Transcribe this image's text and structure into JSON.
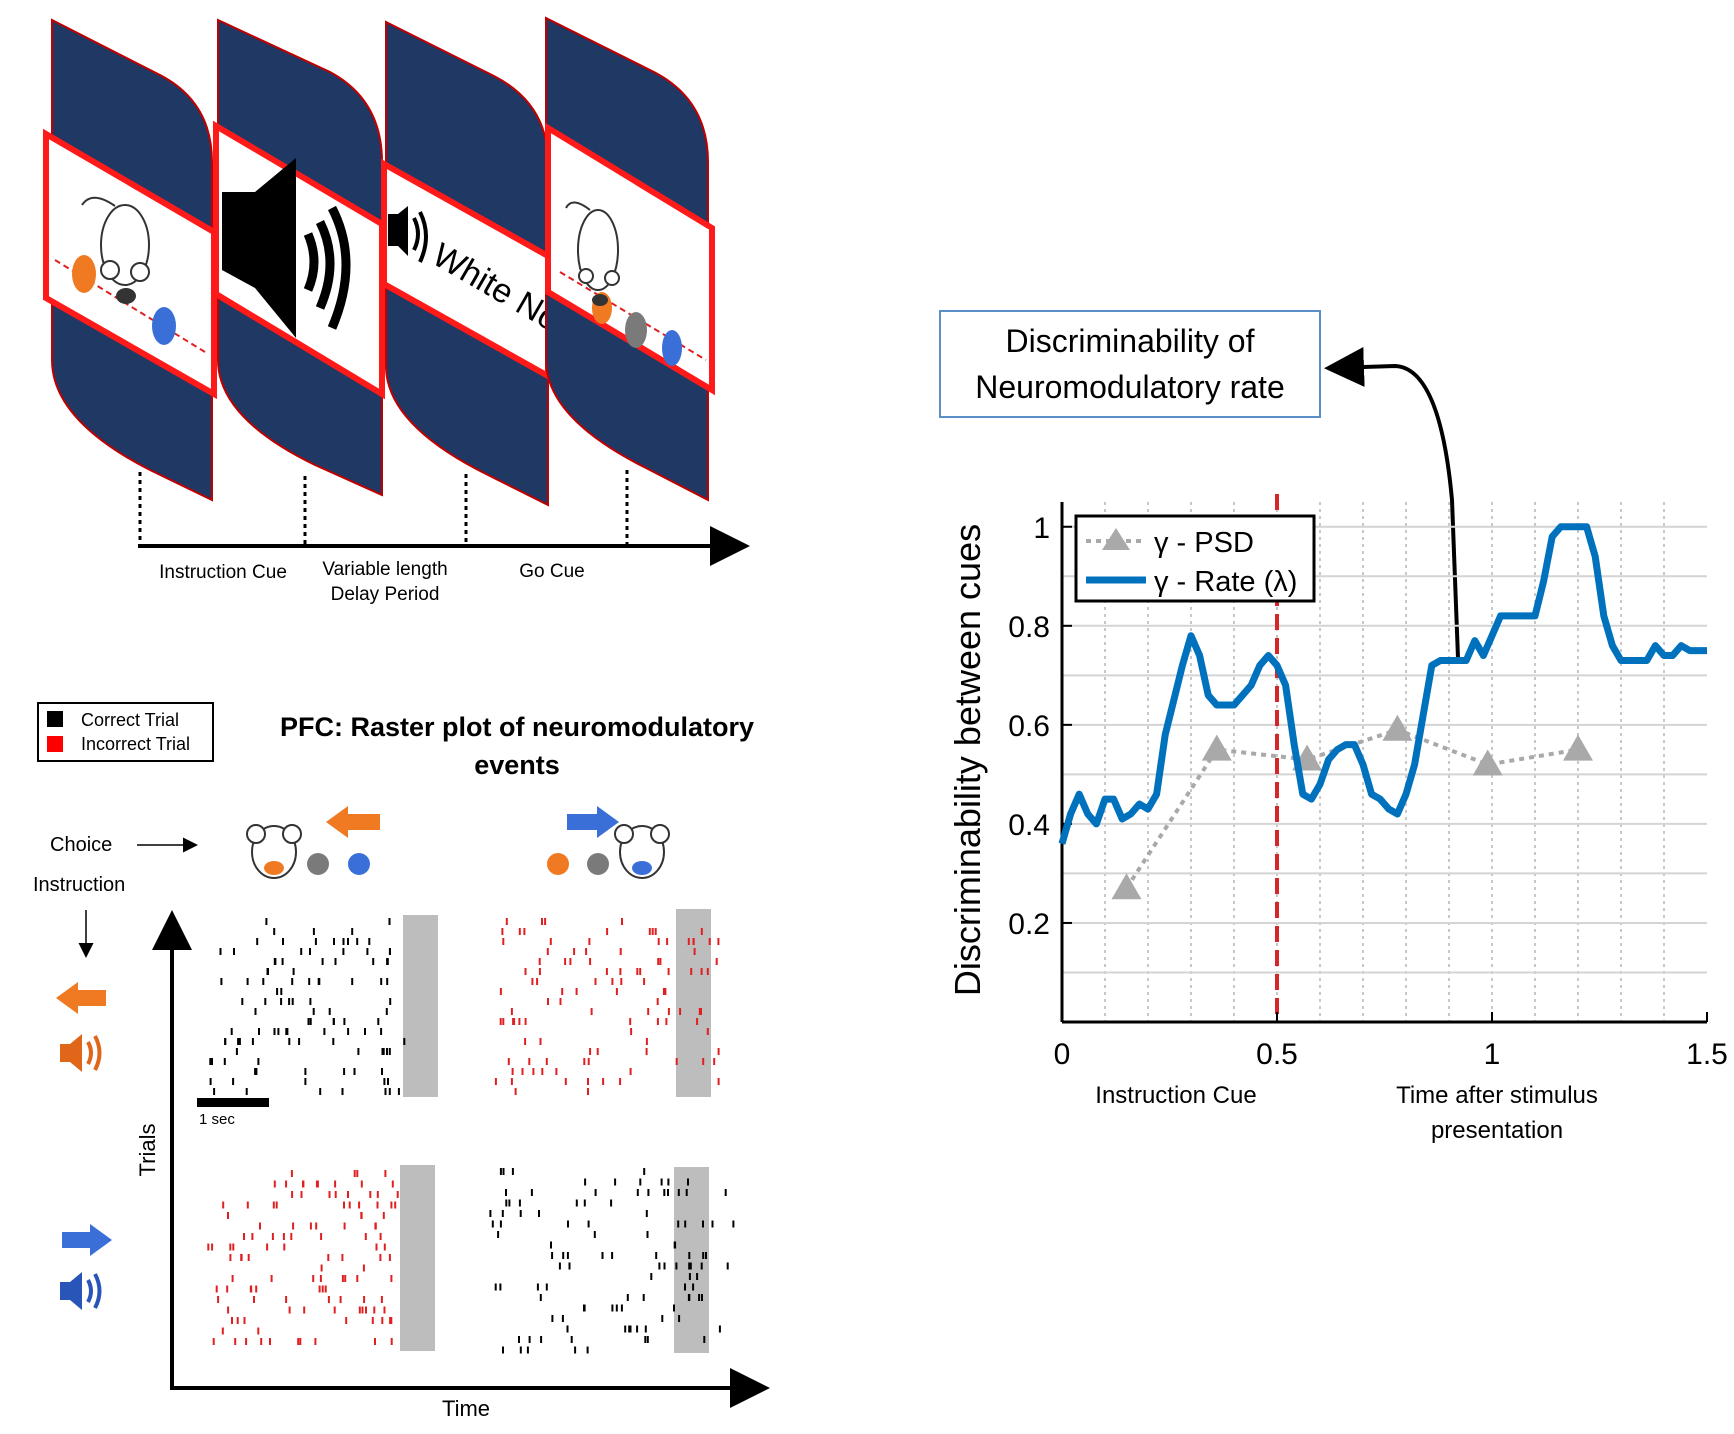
{
  "task_diagram": {
    "screen_texts": {
      "white_noise": "White Noise"
    },
    "phase_labels": [
      {
        "text": "Instruction Cue"
      },
      {
        "text": "Variable length"
      },
      {
        "text": "Delay Period"
      },
      {
        "text": "Go Cue"
      }
    ]
  },
  "raster": {
    "title_line1": "PFC: Raster plot of neuromodulatory",
    "title_line2": "events",
    "legend": [
      {
        "label": "Correct Trial",
        "color": "#000000"
      },
      {
        "label": "Incorrect Trial",
        "color": "#ff0000"
      }
    ],
    "choice_label": "Choice",
    "instruction_label": "Instruction",
    "y_axis_label": "Trials",
    "x_axis_label": "Time",
    "scale_bar_label": "1 sec",
    "colors": {
      "correct": "#000000",
      "incorrect": "#e02020",
      "orange": "#f07a22",
      "blue": "#3a6fd8",
      "gray_band": "#bdbdbd"
    }
  },
  "callout": {
    "line1": "Discriminability of",
    "line2": "Neuromodulatory rate"
  },
  "chart_data": {
    "type": "line",
    "ylabel": "Discriminability between cues",
    "xlim": [
      0,
      1.5
    ],
    "ylim": [
      0,
      1.05
    ],
    "x_ticks": [
      "0",
      "0.5",
      "1",
      "1.5"
    ],
    "y_ticks": [
      "0.2",
      "0.4",
      "0.6",
      "0.8",
      "1"
    ],
    "x_tick_values": [
      0,
      0.5,
      1,
      1.5
    ],
    "y_tick_values": [
      0.2,
      0.4,
      0.6,
      0.8,
      1
    ],
    "grid": true,
    "legend_position": "top-left",
    "below_axis_labels": [
      {
        "text": "Instruction Cue"
      },
      {
        "text": "Time after stimulus"
      },
      {
        "text": "presentation"
      }
    ],
    "event_marker_x": 0.5,
    "series": [
      {
        "name": "γ - PSD",
        "style": "dashed-triangle",
        "color": "#a9a9a9",
        "x": [
          0.15,
          0.36,
          0.57,
          0.78,
          0.99,
          1.2
        ],
        "y": [
          0.27,
          0.55,
          0.53,
          0.59,
          0.52,
          0.55
        ]
      },
      {
        "name": "γ - Rate (λ)",
        "style": "solid",
        "color": "#0072bd",
        "x": [
          0,
          0.02,
          0.04,
          0.06,
          0.08,
          0.1,
          0.12,
          0.14,
          0.16,
          0.18,
          0.2,
          0.22,
          0.24,
          0.26,
          0.28,
          0.3,
          0.32,
          0.34,
          0.36,
          0.38,
          0.4,
          0.42,
          0.44,
          0.46,
          0.48,
          0.5,
          0.52,
          0.54,
          0.56,
          0.58,
          0.6,
          0.62,
          0.64,
          0.66,
          0.68,
          0.7,
          0.72,
          0.74,
          0.76,
          0.78,
          0.8,
          0.82,
          0.84,
          0.86,
          0.88,
          0.9,
          0.92,
          0.94,
          0.96,
          0.98,
          1.0,
          1.02,
          1.04,
          1.06,
          1.08,
          1.1,
          1.12,
          1.14,
          1.16,
          1.18,
          1.2,
          1.22,
          1.24,
          1.26,
          1.28,
          1.3,
          1.32,
          1.34,
          1.36,
          1.38,
          1.4,
          1.42,
          1.44,
          1.46,
          1.48,
          1.5
        ],
        "y": [
          0.36,
          0.42,
          0.46,
          0.42,
          0.4,
          0.45,
          0.45,
          0.41,
          0.42,
          0.44,
          0.43,
          0.46,
          0.58,
          0.65,
          0.72,
          0.78,
          0.74,
          0.66,
          0.64,
          0.64,
          0.64,
          0.66,
          0.68,
          0.72,
          0.74,
          0.72,
          0.68,
          0.56,
          0.46,
          0.45,
          0.48,
          0.53,
          0.55,
          0.56,
          0.56,
          0.52,
          0.46,
          0.45,
          0.43,
          0.42,
          0.46,
          0.52,
          0.62,
          0.72,
          0.73,
          0.73,
          0.73,
          0.73,
          0.77,
          0.74,
          0.78,
          0.82,
          0.82,
          0.82,
          0.82,
          0.82,
          0.89,
          0.98,
          1.0,
          1.0,
          1.0,
          1.0,
          0.94,
          0.82,
          0.76,
          0.73,
          0.73,
          0.73,
          0.73,
          0.76,
          0.74,
          0.74,
          0.76,
          0.75,
          0.75,
          0.75
        ]
      }
    ]
  }
}
